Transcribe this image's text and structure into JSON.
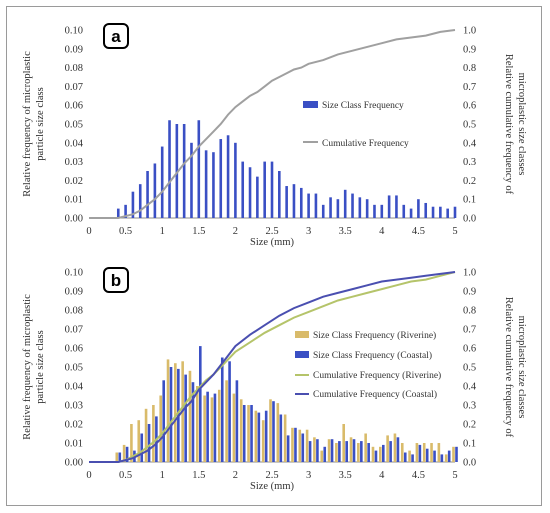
{
  "colors": {
    "coastal": "#3a4fc4",
    "riverine": "#d9bb6a",
    "cum_single": "#a0a0a0",
    "cum_riverine": "#b5c46a",
    "cum_coastal": "#4a4fb0",
    "axis": "#8c8c8c"
  },
  "chart_data": [
    {
      "panel": "a",
      "type": "bar",
      "ylabel": [
        "Relative frequency of  microplastic",
        "particle size class"
      ],
      "y2label": [
        "Relative cumulative frequency of",
        "microplastic size classes"
      ],
      "xlabel": "Size (mm)",
      "xlim": [
        0,
        5
      ],
      "ylim": [
        0,
        0.1
      ],
      "y2lim": [
        0,
        1
      ],
      "xticks": [
        "0",
        "0.5",
        "1",
        "1.5",
        "2",
        "2.5",
        "3",
        "3.5",
        "4",
        "4.5",
        "5"
      ],
      "yticks": [
        "0.00",
        "0.01",
        "0.02",
        "0.03",
        "0.04",
        "0.05",
        "0.06",
        "0.07",
        "0.08",
        "0.09",
        "0.10"
      ],
      "y2ticks": [
        "0.0",
        "0.1",
        "0.2",
        "0.3",
        "0.4",
        "0.5",
        "0.6",
        "0.7",
        "0.8",
        "0.9",
        "1.0"
      ],
      "legend": [
        "Size Class Frequency",
        "Cumulative Frequency"
      ],
      "bars": {
        "name": "Size Class Frequency",
        "x": [
          0.4,
          0.5,
          0.6,
          0.7,
          0.8,
          0.9,
          1.0,
          1.1,
          1.2,
          1.3,
          1.4,
          1.5,
          1.6,
          1.7,
          1.8,
          1.9,
          2.0,
          2.1,
          2.2,
          2.3,
          2.4,
          2.5,
          2.6,
          2.7,
          2.8,
          2.9,
          3.0,
          3.1,
          3.2,
          3.3,
          3.4,
          3.5,
          3.6,
          3.7,
          3.8,
          3.9,
          4.0,
          4.1,
          4.2,
          4.3,
          4.4,
          4.5,
          4.6,
          4.7,
          4.8,
          4.9,
          5.0
        ],
        "values": [
          0.005,
          0.007,
          0.014,
          0.018,
          0.025,
          0.029,
          0.038,
          0.052,
          0.05,
          0.05,
          0.04,
          0.052,
          0.036,
          0.035,
          0.042,
          0.044,
          0.04,
          0.03,
          0.027,
          0.022,
          0.03,
          0.03,
          0.025,
          0.017,
          0.018,
          0.016,
          0.013,
          0.013,
          0.007,
          0.011,
          0.01,
          0.015,
          0.013,
          0.011,
          0.01,
          0.007,
          0.007,
          0.012,
          0.012,
          0.007,
          0.005,
          0.01,
          0.008,
          0.006,
          0.006,
          0.005,
          0.006
        ]
      },
      "cumulative": {
        "name": "Cumulative Frequency",
        "x": [
          0,
          0.4,
          0.5,
          0.6,
          0.7,
          0.8,
          0.9,
          1.0,
          1.1,
          1.2,
          1.3,
          1.4,
          1.5,
          1.6,
          1.7,
          1.8,
          1.9,
          2.0,
          2.1,
          2.2,
          2.3,
          2.4,
          2.5,
          2.6,
          2.7,
          2.8,
          2.9,
          3.0,
          3.2,
          3.4,
          3.6,
          3.8,
          4.0,
          4.2,
          4.4,
          4.6,
          4.8,
          5.0
        ],
        "values": [
          0,
          0,
          0.01,
          0.02,
          0.04,
          0.07,
          0.1,
          0.14,
          0.19,
          0.24,
          0.29,
          0.33,
          0.38,
          0.42,
          0.46,
          0.5,
          0.55,
          0.59,
          0.62,
          0.65,
          0.67,
          0.7,
          0.73,
          0.75,
          0.77,
          0.79,
          0.8,
          0.82,
          0.84,
          0.87,
          0.89,
          0.91,
          0.93,
          0.95,
          0.96,
          0.97,
          0.99,
          1.0
        ]
      }
    },
    {
      "panel": "b",
      "type": "bar",
      "ylabel": [
        "Relative frequency of  microplastic",
        "particle size class"
      ],
      "y2label": [
        "Relative cumulative frequency of",
        "microplastic size classes"
      ],
      "xlabel": "Size (mm)",
      "xlim": [
        0,
        5
      ],
      "ylim": [
        0,
        0.1
      ],
      "y2lim": [
        0,
        1
      ],
      "xticks": [
        "0",
        "0.5",
        "1",
        "1.5",
        "2",
        "2.5",
        "3",
        "3.5",
        "4",
        "4.5",
        "5"
      ],
      "yticks": [
        "0.00",
        "0.01",
        "0.02",
        "0.03",
        "0.04",
        "0.05",
        "0.06",
        "0.07",
        "0.08",
        "0.09",
        "0.10"
      ],
      "y2ticks": [
        "0.0",
        "0.1",
        "0.2",
        "0.3",
        "0.4",
        "0.5",
        "0.6",
        "0.7",
        "0.8",
        "0.9",
        "1.0"
      ],
      "legend": [
        "Size Class Frequency (Riverine)",
        "Size Class Frequency (Coastal)",
        "Cumulative Frequency (Riverine)",
        "Cumulative Frequency (Coastal)"
      ],
      "x": [
        0.4,
        0.5,
        0.6,
        0.7,
        0.8,
        0.9,
        1.0,
        1.1,
        1.2,
        1.3,
        1.4,
        1.5,
        1.6,
        1.7,
        1.8,
        1.9,
        2.0,
        2.1,
        2.2,
        2.3,
        2.4,
        2.5,
        2.6,
        2.7,
        2.8,
        2.9,
        3.0,
        3.1,
        3.2,
        3.3,
        3.4,
        3.5,
        3.6,
        3.7,
        3.8,
        3.9,
        4.0,
        4.1,
        4.2,
        4.3,
        4.4,
        4.5,
        4.6,
        4.7,
        4.8,
        4.9,
        5.0
      ],
      "series": [
        {
          "name": "Size Class Frequency (Riverine)",
          "values": [
            0.005,
            0.009,
            0.02,
            0.022,
            0.028,
            0.03,
            0.035,
            0.054,
            0.052,
            0.053,
            0.048,
            0.04,
            0.035,
            0.034,
            0.038,
            0.043,
            0.036,
            0.033,
            0.03,
            0.027,
            0.022,
            0.033,
            0.031,
            0.025,
            0.018,
            0.017,
            0.017,
            0.013,
            0.006,
            0.012,
            0.01,
            0.02,
            0.013,
            0.01,
            0.015,
            0.008,
            0.008,
            0.014,
            0.015,
            0.01,
            0.006,
            0.01,
            0.01,
            0.01,
            0.01,
            0.004,
            0.008
          ]
        },
        {
          "name": "Size Class Frequency (Coastal)",
          "values": [
            0.005,
            0.008,
            0.006,
            0.015,
            0.02,
            0.024,
            0.043,
            0.05,
            0.049,
            0.046,
            0.042,
            0.061,
            0.037,
            0.036,
            0.055,
            0.053,
            0.043,
            0.03,
            0.03,
            0.026,
            0.027,
            0.032,
            0.025,
            0.014,
            0.018,
            0.015,
            0.011,
            0.012,
            0.008,
            0.012,
            0.011,
            0.011,
            0.012,
            0.011,
            0.01,
            0.006,
            0.009,
            0.011,
            0.013,
            0.005,
            0.004,
            0.009,
            0.007,
            0.006,
            0.004,
            0.006,
            0.008
          ]
        },
        {
          "name": "Cumulative Frequency (Riverine)",
          "x": [
            0,
            0.4,
            0.5,
            0.6,
            0.7,
            0.8,
            0.9,
            1.0,
            1.1,
            1.2,
            1.3,
            1.4,
            1.5,
            1.6,
            1.7,
            1.8,
            1.9,
            2.0,
            2.2,
            2.4,
            2.6,
            2.8,
            3.0,
            3.2,
            3.4,
            3.6,
            3.8,
            4.0,
            4.2,
            4.4,
            4.6,
            4.8,
            5.0
          ],
          "values": [
            0,
            0,
            0.01,
            0.03,
            0.05,
            0.08,
            0.11,
            0.15,
            0.2,
            0.25,
            0.3,
            0.35,
            0.39,
            0.43,
            0.46,
            0.5,
            0.54,
            0.58,
            0.63,
            0.68,
            0.72,
            0.76,
            0.79,
            0.82,
            0.85,
            0.87,
            0.89,
            0.91,
            0.93,
            0.95,
            0.96,
            0.98,
            1.0
          ]
        },
        {
          "name": "Cumulative Frequency (Coastal)",
          "x": [
            0,
            0.4,
            0.5,
            0.6,
            0.7,
            0.8,
            0.9,
            1.0,
            1.1,
            1.2,
            1.3,
            1.4,
            1.5,
            1.6,
            1.7,
            1.8,
            1.9,
            2.0,
            2.2,
            2.4,
            2.6,
            2.8,
            3.0,
            3.2,
            3.4,
            3.6,
            3.8,
            4.0,
            4.2,
            4.4,
            4.6,
            4.8,
            5.0
          ],
          "values": [
            0,
            0,
            0.01,
            0.02,
            0.04,
            0.06,
            0.09,
            0.13,
            0.18,
            0.23,
            0.28,
            0.32,
            0.38,
            0.42,
            0.46,
            0.51,
            0.56,
            0.61,
            0.67,
            0.72,
            0.77,
            0.81,
            0.84,
            0.87,
            0.89,
            0.91,
            0.93,
            0.95,
            0.96,
            0.97,
            0.98,
            0.99,
            1.0
          ]
        }
      ]
    }
  ]
}
